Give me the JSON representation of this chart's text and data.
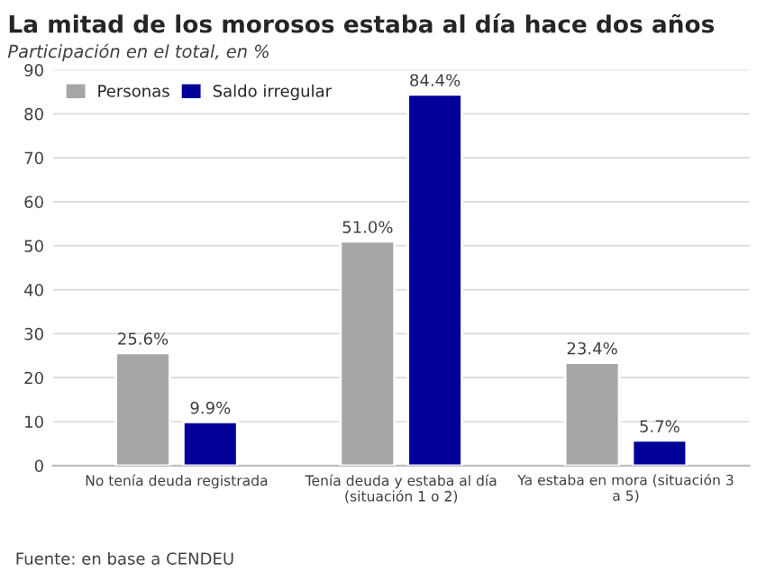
{
  "chart_data": {
    "type": "bar",
    "title": "La mitad de los morosos estaba al día hace dos años",
    "subtitle": "Participación en el total, en %",
    "categories": [
      "No tenía deuda registrada",
      "Tenía deuda y estaba al día\n(situación 1 o 2)",
      "Ya estaba en mora (situación 3\na 5)"
    ],
    "series": [
      {
        "name": "Personas",
        "color": "#a6a6a6",
        "values": [
          25.6,
          51.0,
          23.4
        ],
        "value_labels": [
          "25.6%",
          "51.0%",
          "23.4%"
        ]
      },
      {
        "name": "Saldo irregular",
        "color": "#000099",
        "values": [
          9.9,
          84.4,
          5.7
        ],
        "value_labels": [
          "9.9%",
          "84.4%",
          "5.7%"
        ]
      }
    ],
    "ylim": [
      0,
      90
    ],
    "yticks": [
      0,
      10,
      20,
      30,
      40,
      50,
      60,
      70,
      80,
      90
    ],
    "grid": "y",
    "legend": "top left",
    "annotations": [
      "Fuente: en base a CENDEU"
    ]
  }
}
